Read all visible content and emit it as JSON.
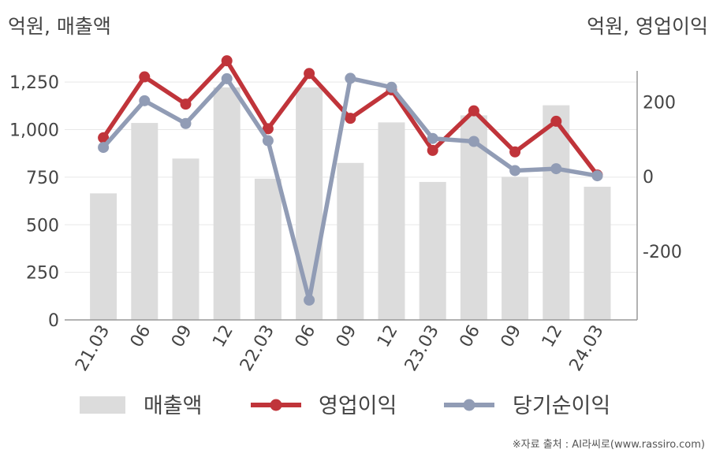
{
  "unit_left": "억원, 매출액",
  "unit_right": "억원, 영업이익",
  "source": "※자료 출처 : AI라씨로(www.rassiro.com)",
  "colors": {
    "bar": "#dcdcdc",
    "operating": "#c0343a",
    "net": "#919cb5",
    "axis": "#999999",
    "grid": "#e8e8e8",
    "text": "#444444"
  },
  "chart_data": {
    "type": "bar",
    "categories": [
      "21.03",
      "06",
      "09",
      "12",
      "22.03",
      "06",
      "09",
      "12",
      "23.03",
      "06",
      "09",
      "12",
      "24.03"
    ],
    "y_left": {
      "ticks": [
        "0",
        "250",
        "500",
        "750",
        "1,000",
        "1,250"
      ],
      "range": [
        0,
        1350
      ]
    },
    "y_right": {
      "ticks": [
        "-200",
        "0",
        "200"
      ],
      "range": [
        -384,
        304
      ]
    },
    "series": [
      {
        "name": "매출액",
        "kind": "bar",
        "axis": "left",
        "values": [
          665,
          1035,
          848,
          1222,
          742,
          1222,
          825,
          1038,
          725,
          1075,
          752,
          1128,
          700
        ]
      },
      {
        "name": "영업이익",
        "kind": "line",
        "axis": "right",
        "values": [
          104,
          267,
          194,
          310,
          128,
          276,
          156,
          232,
          70,
          176,
          66,
          148,
          4
        ]
      },
      {
        "name": "당기순이익",
        "kind": "line",
        "axis": "right",
        "values": [
          78,
          203,
          142,
          262,
          96,
          -331,
          263,
          239,
          102,
          94,
          16,
          21,
          2
        ]
      }
    ],
    "legend": {
      "position": "bottom",
      "items": [
        "매출액",
        "영업이익",
        "당기순이익"
      ]
    }
  }
}
